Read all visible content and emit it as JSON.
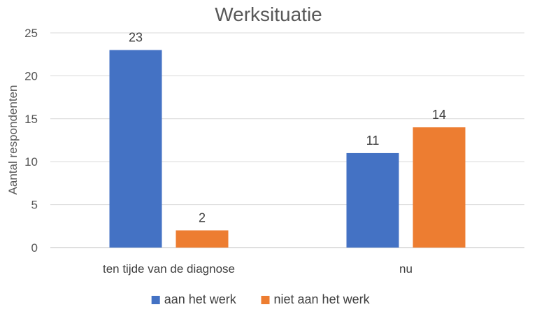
{
  "chart_data": {
    "type": "bar",
    "title": "Werksituatie",
    "xlabel": "",
    "ylabel": "Aantal respondenten",
    "categories": [
      "ten tijde van de diagnose",
      "nu"
    ],
    "series": [
      {
        "name": "aan het werk",
        "values": [
          23,
          11
        ],
        "color": "#4472C4"
      },
      {
        "name": "niet aan het werk",
        "values": [
          2,
          14
        ],
        "color": "#ED7D31"
      }
    ],
    "ylim": [
      0,
      25
    ],
    "yticks": [
      0,
      5,
      10,
      15,
      20,
      25
    ],
    "grid": true,
    "legend": "bottom"
  }
}
